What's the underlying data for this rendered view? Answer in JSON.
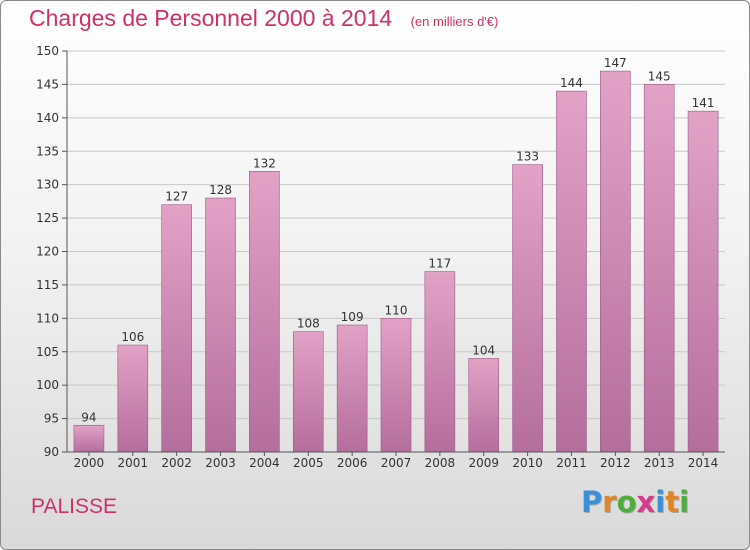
{
  "header": {
    "title": "Charges de Personnel 2000 à 2014",
    "subtitle": "(en milliers d'€)"
  },
  "footer": {
    "commune": "PALISSE",
    "brand_letters": [
      "P",
      "r",
      "o",
      "x",
      "i",
      "t",
      "i"
    ],
    "brand_colors": [
      "#3a8fd6",
      "#e0862a",
      "#4fae3a",
      "#d63a8a",
      "#3a8fd6",
      "#e0862a",
      "#4fae3a"
    ]
  },
  "chart_data": {
    "type": "bar",
    "title": "Charges de Personnel 2000 à 2014",
    "subtitle": "(en milliers d'€)",
    "categories": [
      "2000",
      "2001",
      "2002",
      "2003",
      "2004",
      "2005",
      "2006",
      "2007",
      "2008",
      "2009",
      "2010",
      "2011",
      "2012",
      "2013",
      "2014"
    ],
    "values": [
      94,
      106,
      127,
      128,
      132,
      108,
      109,
      110,
      117,
      104,
      133,
      144,
      147,
      145,
      141
    ],
    "ylim": [
      90,
      150
    ],
    "yticks": [
      90,
      95,
      100,
      105,
      110,
      115,
      120,
      125,
      130,
      135,
      140,
      145,
      150
    ],
    "grid": true,
    "bar_color": "#e2a2c6",
    "bar_color_dark": "#b46e9c"
  }
}
